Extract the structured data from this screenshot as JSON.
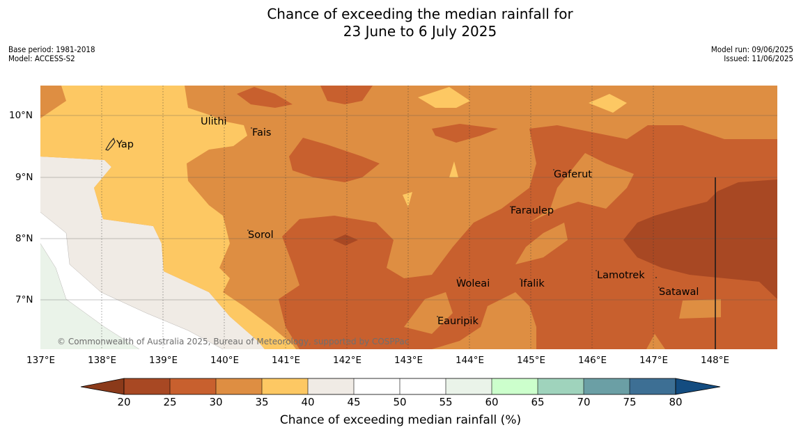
{
  "title": {
    "line1": "Chance of exceeding the median rainfall for",
    "line2": "23 June to 6 July 2025"
  },
  "meta_left": {
    "base_period": "Base period: 1981-2018",
    "model": "Model: ACCESS-S2"
  },
  "meta_right": {
    "model_run": "Model run: 09/06/2025",
    "issued": "Issued: 11/06/2025"
  },
  "copyright": "© Commonwealth of Australia 2025, Bureau of Meteorology, supported by COSPPac",
  "axes": {
    "lon_labels": [
      "137°E",
      "138°E",
      "139°E",
      "140°E",
      "141°E",
      "142°E",
      "143°E",
      "144°E",
      "145°E",
      "146°E",
      "147°E",
      "148°E"
    ],
    "lat_labels": [
      "10°N",
      "9°N",
      "8°N",
      "7°N"
    ]
  },
  "places": [
    {
      "name": "Yap"
    },
    {
      "name": "Ulithi"
    },
    {
      "name": "Fais"
    },
    {
      "name": "Gaferut"
    },
    {
      "name": "Faraulep"
    },
    {
      "name": "Sorol"
    },
    {
      "name": "Woleai"
    },
    {
      "name": "Ifalik"
    },
    {
      "name": "Lamotrek"
    },
    {
      "name": "Satawal"
    },
    {
      "name": "Eauripik"
    }
  ],
  "colorbar": {
    "title": "Chance of exceeding median rainfall (%)",
    "ticks": [
      "20",
      "25",
      "30",
      "35",
      "40",
      "45",
      "50",
      "55",
      "60",
      "65",
      "70",
      "75",
      "80"
    ],
    "colors": [
      "#8b3a1a",
      "#a84823",
      "#c8602e",
      "#de8e42",
      "#fdc863",
      "#f0ebe5",
      "#ffffff",
      "#ffffff",
      "#eaf3e9",
      "#ccffcc",
      "#9fd3bc",
      "#6b9fa5",
      "#3d6f94",
      "#134c80"
    ]
  },
  "map_colors": {
    "c20_25": "#a84823",
    "c25_30": "#c8602e",
    "c30_35": "#de8e42",
    "c35_40": "#fdc863",
    "c40_45": "#f0ebe5",
    "c45_55": "#ffffff",
    "c55_60": "#eaf3e9"
  }
}
